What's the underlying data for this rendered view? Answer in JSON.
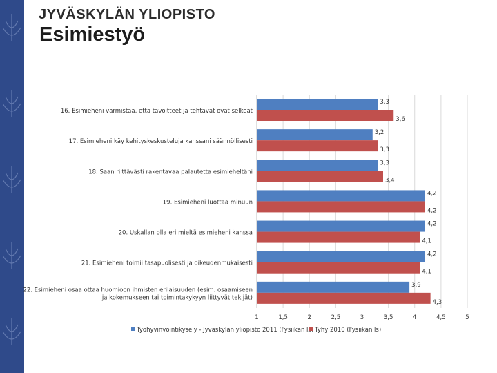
{
  "header": {
    "brand": "JYVÄSKYLÄN YLIOPISTO",
    "title": "Esimiestyö"
  },
  "colors": {
    "sidebar": "#2f4a8a",
    "series1": "#4f7fc1",
    "series2": "#c0504d",
    "grid": "#d9d9d9"
  },
  "chart_data": {
    "type": "bar",
    "orientation": "horizontal",
    "title": "",
    "xlabel": "",
    "ylabel": "",
    "xlim": [
      1,
      5
    ],
    "xticks": [
      "1",
      "1,5",
      "2",
      "2,5",
      "3",
      "3,5",
      "4",
      "4,5",
      "5"
    ],
    "grid": true,
    "legend_position": "bottom",
    "categories": [
      [
        "16. Esimieheni varmistaa, että tavoitteet ja tehtävät ovat selkeät"
      ],
      [
        "17. Esimieheni käy kehityskeskusteluja kanssani säännöllisesti"
      ],
      [
        "18. Saan riittävästi rakentavaa palautetta esimieheltäni"
      ],
      [
        "19. Esimieheni luottaa minuun"
      ],
      [
        "20. Uskallan olla eri mieltä esimieheni kanssa"
      ],
      [
        "21. Esimieheni toimii tasapuolisesti ja oikeudenmukaisesti"
      ],
      [
        "22. Esimieheni osaa ottaa huomioon ihmisten erilaisuuden (esim. osaamiseen",
        "ja kokemukseen tai toimintakykyyn liittyvät tekijät)"
      ]
    ],
    "series": [
      {
        "name": "Työhyvinvointikysely - Jyväskylän yliopisto 2011 (Fysiikan ls)",
        "values": [
          3.3,
          3.2,
          3.3,
          4.2,
          4.2,
          4.2,
          3.9
        ],
        "labels": [
          "3,3",
          "3,2",
          "3,3",
          "4,2",
          "4,2",
          "4,2",
          "3,9"
        ]
      },
      {
        "name": "Tyhy 2010 (Fysiikan ls)",
        "values": [
          3.6,
          3.3,
          3.4,
          4.2,
          4.1,
          4.1,
          4.3
        ],
        "labels": [
          "3,6",
          "3,3",
          "3,4",
          "4,2",
          "4,1",
          "4,1",
          "4,3"
        ]
      }
    ]
  }
}
